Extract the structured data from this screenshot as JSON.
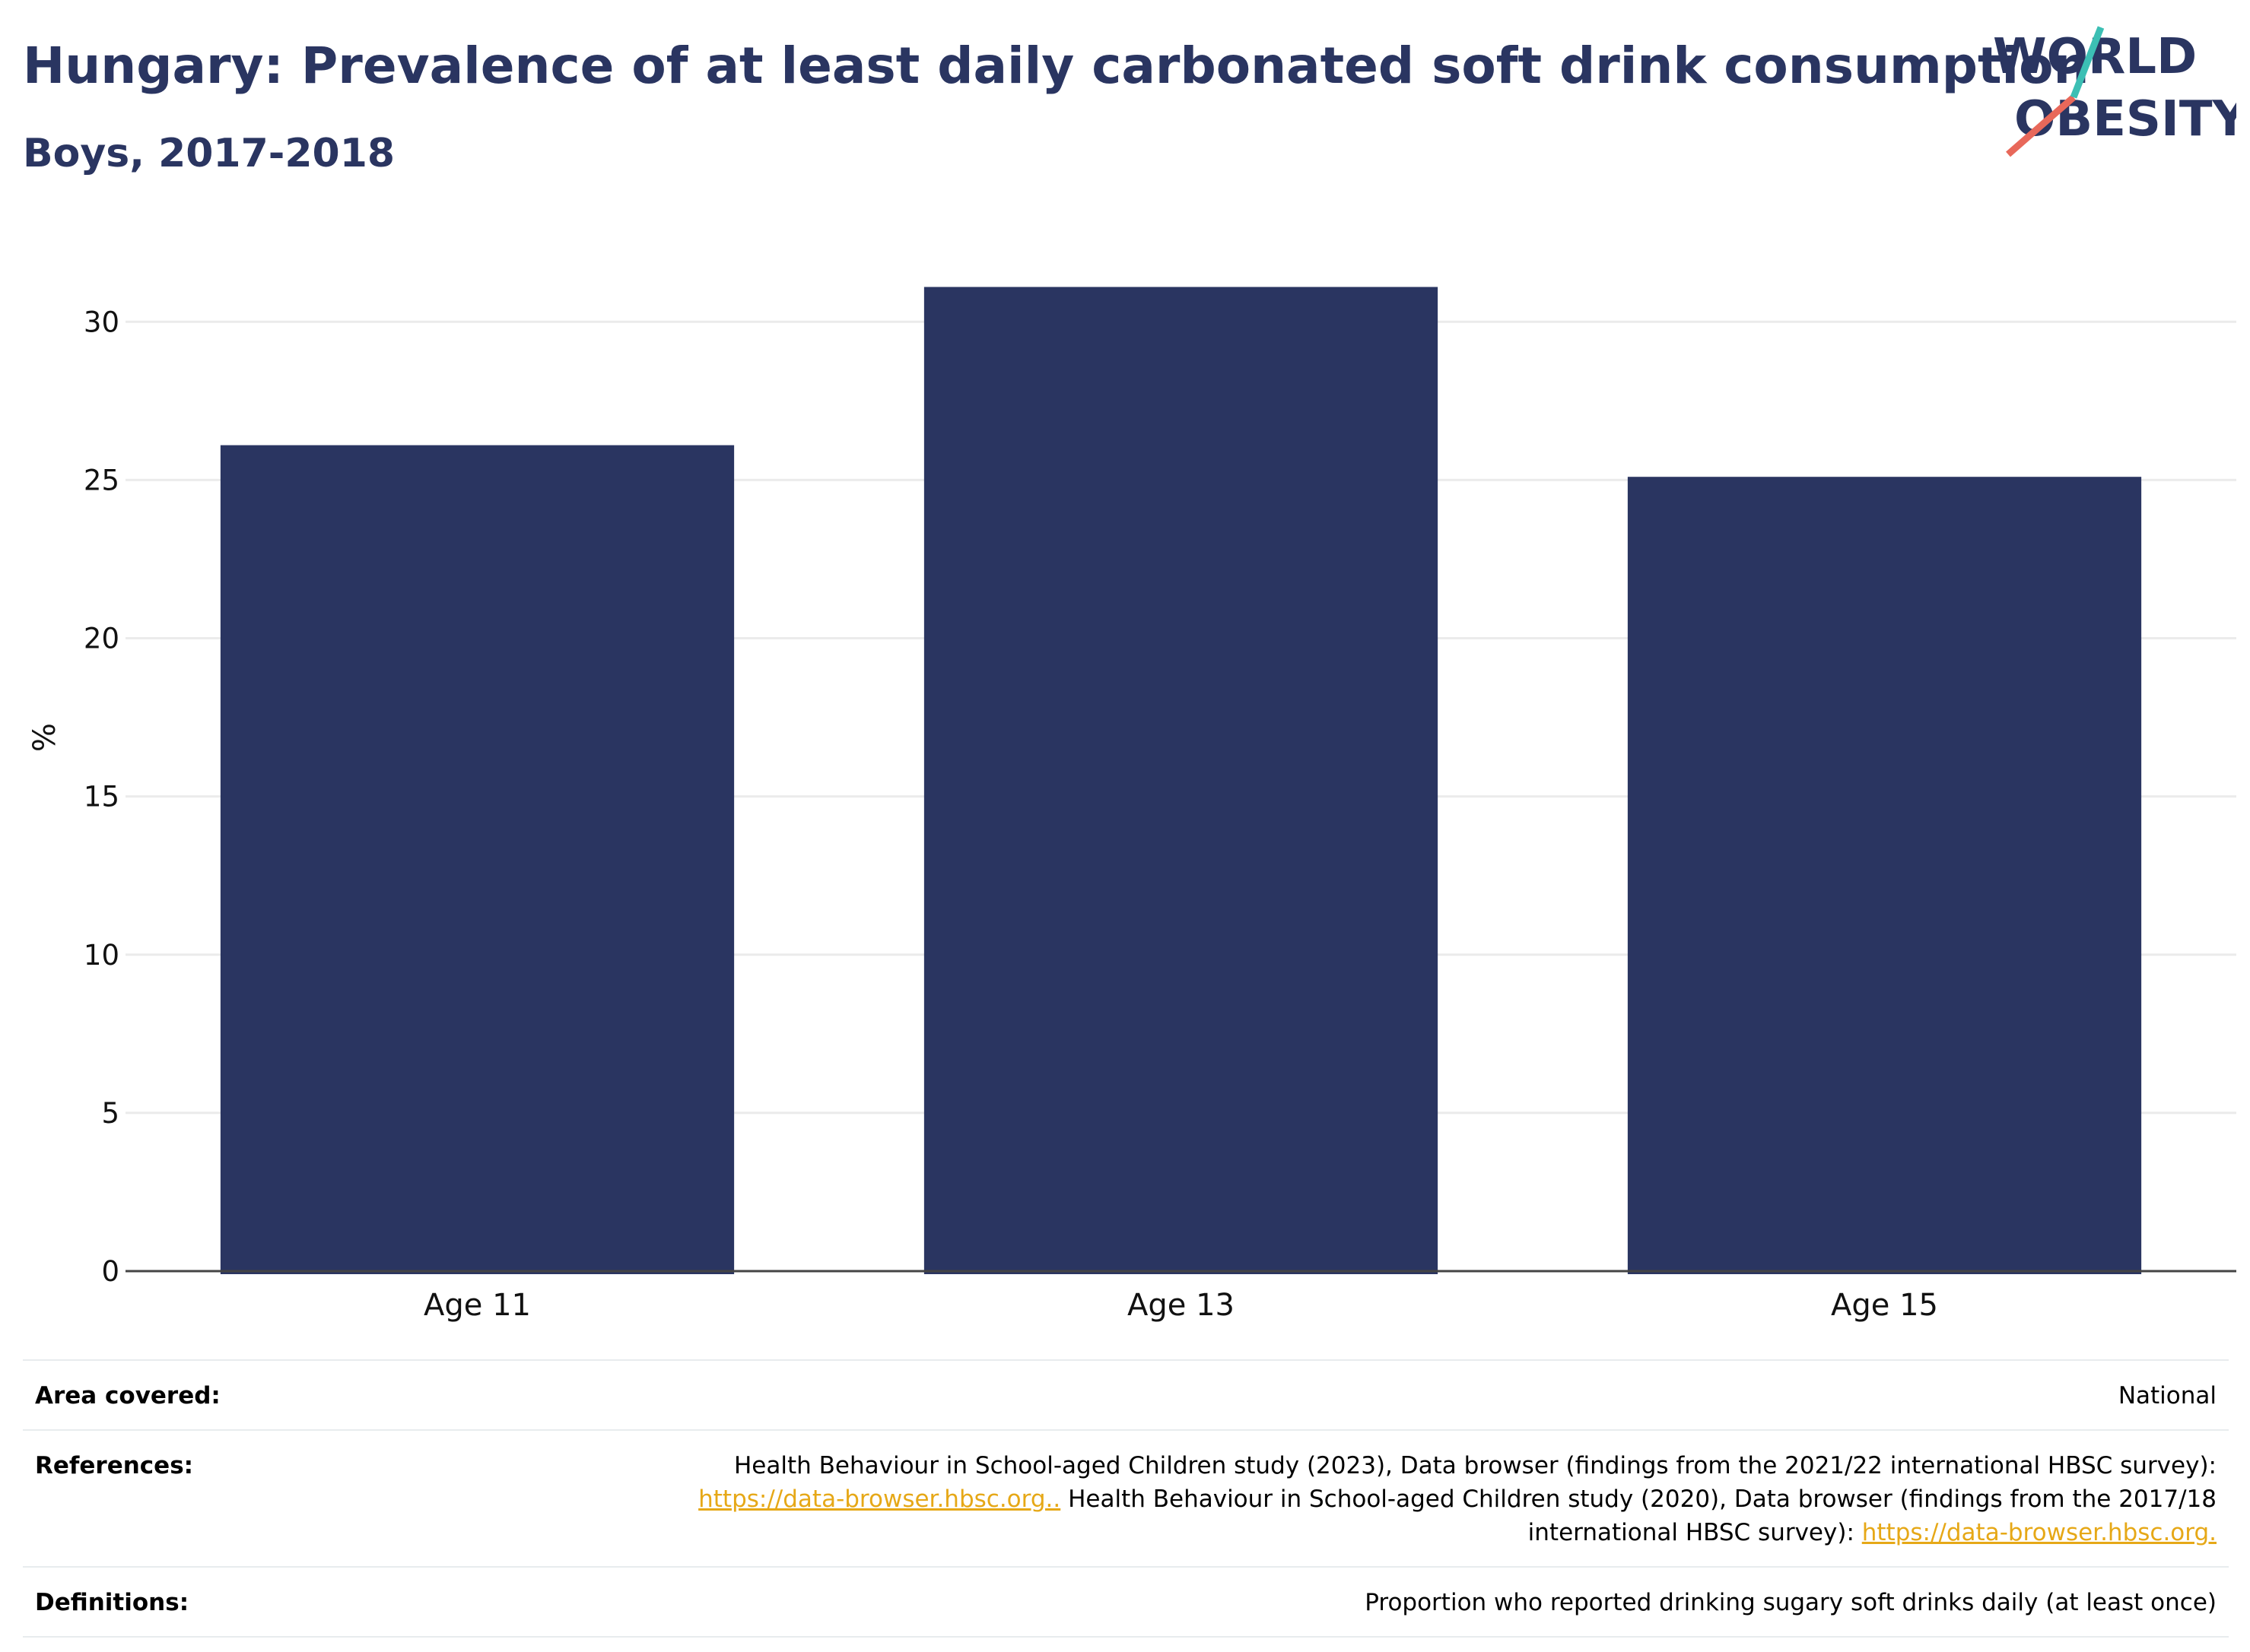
{
  "header": {
    "title": "Hungary: Prevalence of at least daily carbonated soft drink consumption",
    "subtitle": "Boys, 2017-2018",
    "logo_line1": "WORLD",
    "logo_line2": "OBESITY"
  },
  "chart_data": {
    "type": "bar",
    "title": "Hungary: Prevalence of at least daily carbonated soft drink consumption",
    "subtitle": "Boys, 2017-2018",
    "categories": [
      "Age 11",
      "Age 13",
      "Age 15"
    ],
    "values": [
      26.1,
      31.1,
      25.1
    ],
    "xlabel": "",
    "ylabel": "%",
    "ylim": [
      0,
      32
    ],
    "yticks": [
      0,
      5,
      10,
      15,
      20,
      25,
      30
    ],
    "grid": true,
    "bar_color": "#2a3561"
  },
  "meta": {
    "area_label": "Area covered:",
    "area_value": "National",
    "references_label": "References:",
    "ref_text_1": "Health Behaviour in School-aged Children study (2023), Data browser (findings from the 2021/22 international HBSC survey):",
    "ref_link_1": "https://data-browser.hbsc.org..",
    "ref_text_2": " Health Behaviour in School-aged Children study (2020), Data browser (findings from the 2017/18 international HBSC survey): ",
    "ref_link_2": "https://data-browser.hbsc.org.",
    "definitions_label": "Definitions:",
    "definitions_value": "Proportion who reported drinking sugary soft drinks daily (at least once)"
  },
  "colors": {
    "brand_navy": "#2a3561",
    "logo_teal": "#3cbfb4",
    "logo_coral": "#e8685a",
    "link": "#e6a817",
    "grid": "#ebebeb"
  }
}
